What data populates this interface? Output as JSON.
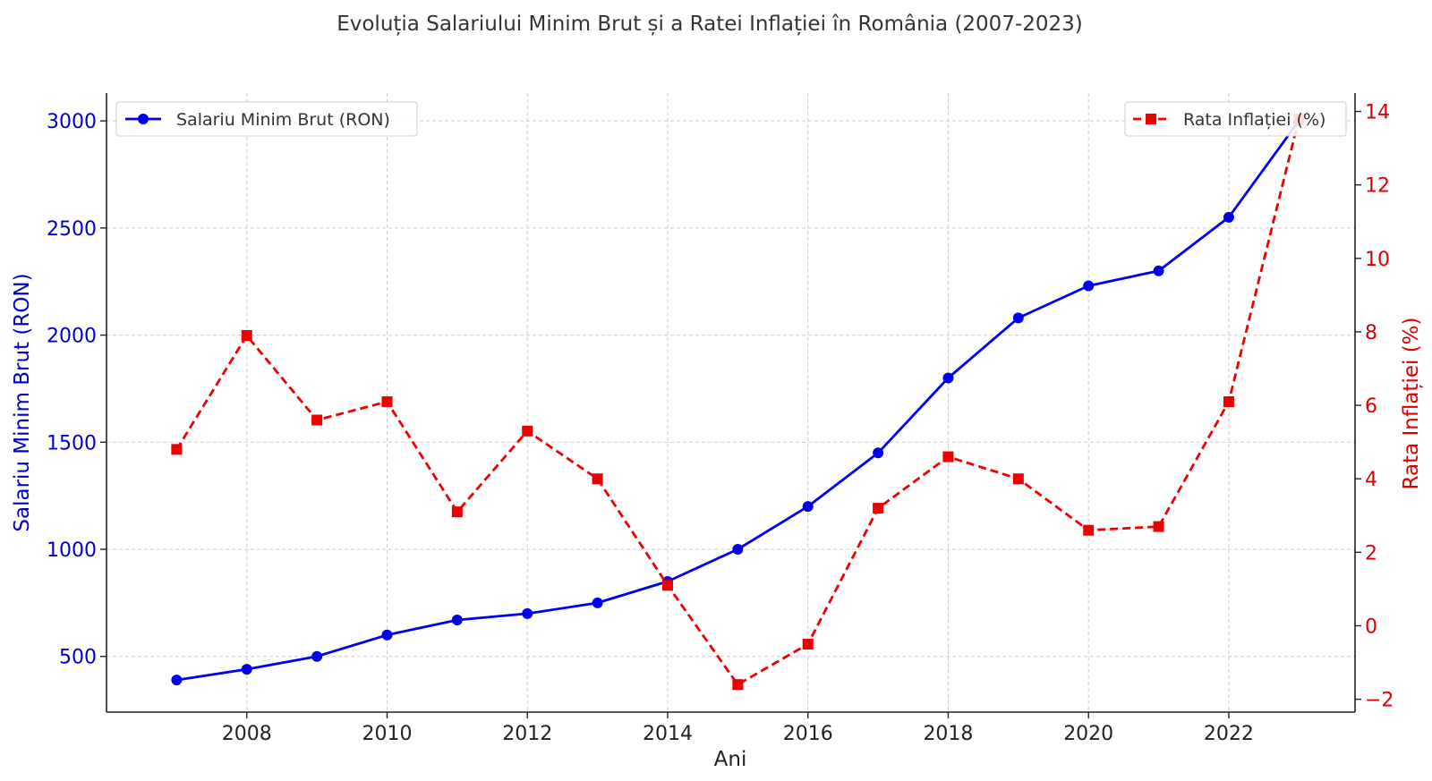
{
  "chart_data": {
    "type": "line",
    "title": "Evoluția Salariului Minim Brut și a Ratei Inflației în România (2007-2023)",
    "xlabel": "Ani",
    "ylabel": "Salariu Minim Brut (RON)",
    "y2label": "Rata Inflației (%)",
    "x": [
      2007,
      2008,
      2009,
      2010,
      2011,
      2012,
      2013,
      2014,
      2015,
      2016,
      2017,
      2018,
      2019,
      2020,
      2021,
      2022,
      2023
    ],
    "xlim": [
      2006.0,
      2023.8
    ],
    "x_ticks": [
      2008,
      2010,
      2012,
      2014,
      2016,
      2018,
      2020,
      2022
    ],
    "x_tick_labels": [
      "2008",
      "2010",
      "2012",
      "2014",
      "2016",
      "2018",
      "2020",
      "2022"
    ],
    "ylim": [
      240,
      3130
    ],
    "y_ticks": [
      500,
      1000,
      1500,
      2000,
      2500,
      3000
    ],
    "y_tick_labels": [
      "500",
      "1000",
      "1500",
      "2000",
      "2500",
      "3000"
    ],
    "y2lim": [
      -2.35,
      14.5
    ],
    "y2_ticks": [
      -2,
      0,
      2,
      4,
      6,
      8,
      10,
      12,
      14
    ],
    "y2_tick_labels": [
      "−2",
      "0",
      "2",
      "4",
      "6",
      "8",
      "10",
      "12",
      "14"
    ],
    "grid": true,
    "series": [
      {
        "name": "Salariu Minim Brut (RON)",
        "axis": "left",
        "color": "#0000ee",
        "style": "solid",
        "marker": "circle",
        "values": [
          390,
          440,
          500,
          600,
          670,
          700,
          750,
          850,
          1000,
          1200,
          1450,
          1800,
          2080,
          2230,
          2300,
          2550,
          3000
        ]
      },
      {
        "name": "Rata Inflației (%)",
        "axis": "right",
        "color": "#ee0000",
        "style": "dashed",
        "marker": "square",
        "values": [
          4.8,
          7.9,
          5.6,
          6.1,
          3.1,
          5.3,
          4.0,
          1.1,
          -1.6,
          -0.5,
          3.2,
          4.6,
          4.0,
          2.6,
          2.7,
          6.1,
          13.8
        ]
      }
    ],
    "legend": [
      {
        "series": 0,
        "placement": "top-left"
      },
      {
        "series": 1,
        "placement": "top-right"
      }
    ]
  }
}
